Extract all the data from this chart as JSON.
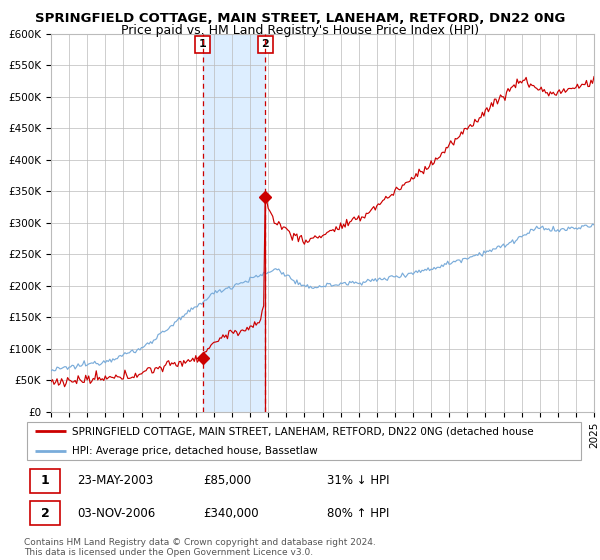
{
  "title": "SPRINGFIELD COTTAGE, MAIN STREET, LANEHAM, RETFORD, DN22 0NG",
  "subtitle": "Price paid vs. HM Land Registry's House Price Index (HPI)",
  "ylabel_ticks": [
    "£0",
    "£50K",
    "£100K",
    "£150K",
    "£200K",
    "£250K",
    "£300K",
    "£350K",
    "£400K",
    "£450K",
    "£500K",
    "£550K",
    "£600K"
  ],
  "ylim": [
    0,
    600000
  ],
  "ytick_vals": [
    0,
    50000,
    100000,
    150000,
    200000,
    250000,
    300000,
    350000,
    400000,
    450000,
    500000,
    550000,
    600000
  ],
  "xstart_year": 1995,
  "xend_year": 2025,
  "sale1_value": 85000,
  "sale1_label": "1",
  "sale1_year": 2003.38,
  "sale2_value": 340000,
  "sale2_label": "2",
  "sale2_year": 2006.84,
  "red_line_color": "#cc0000",
  "blue_line_color": "#7aacda",
  "shade_color": "#ddeeff",
  "grid_color": "#bbbbbb",
  "bg_color": "#ffffff",
  "legend_red_label": "SPRINGFIELD COTTAGE, MAIN STREET, LANEHAM, RETFORD, DN22 0NG (detached house",
  "legend_blue_label": "HPI: Average price, detached house, Bassetlaw",
  "table_row1": [
    "1",
    "23-MAY-2003",
    "£85,000",
    "31% ↓ HPI"
  ],
  "table_row2": [
    "2",
    "03-NOV-2006",
    "£340,000",
    "80% ↑ HPI"
  ],
  "footer": "Contains HM Land Registry data © Crown copyright and database right 2024.\nThis data is licensed under the Open Government Licence v3.0.",
  "title_fontsize": 9.5,
  "subtitle_fontsize": 9,
  "axis_fontsize": 7.5
}
